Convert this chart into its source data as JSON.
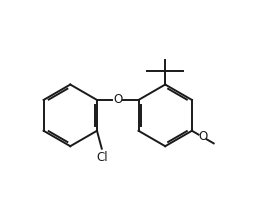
{
  "bg_color": "#ffffff",
  "line_color": "#1a1a1a",
  "line_width": 1.4,
  "font_size": 8.5,
  "label_O_bridge": "O",
  "label_O_methoxy": "O",
  "label_Cl": "Cl",
  "figsize": [
    2.54,
    2.11
  ],
  "dpi": 100
}
